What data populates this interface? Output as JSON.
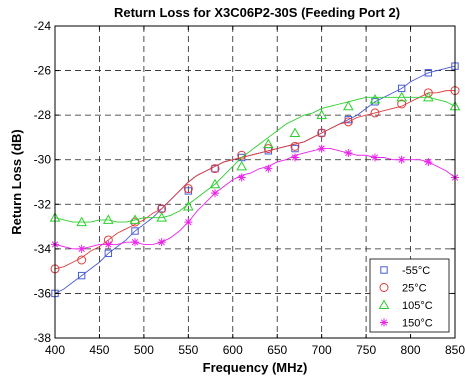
{
  "chart_data": {
    "type": "line",
    "title": "Return Loss for X3C06P2-30S (Feeding Port 2)",
    "xlabel": "Frequency (MHz)",
    "ylabel": "Return Loss (dB)",
    "xlim": [
      400,
      850
    ],
    "ylim": [
      -38,
      -24
    ],
    "xticks": [
      400,
      450,
      500,
      550,
      600,
      650,
      700,
      750,
      800,
      850
    ],
    "yticks": [
      -38,
      -36,
      -34,
      -32,
      -30,
      -28,
      -26,
      -24
    ],
    "grid": true,
    "legend_position": "bottom-right",
    "series": [
      {
        "name": "-55°C",
        "color": "#4a5dd6",
        "marker": "square",
        "x": [
          400,
          410,
          420,
          430,
          440,
          450,
          460,
          470,
          480,
          490,
          500,
          510,
          520,
          530,
          540,
          550,
          560,
          570,
          580,
          590,
          600,
          610,
          620,
          630,
          640,
          650,
          660,
          670,
          680,
          690,
          700,
          710,
          720,
          730,
          740,
          750,
          760,
          770,
          780,
          790,
          800,
          810,
          820,
          830,
          840,
          850
        ],
        "y": [
          -36.0,
          -35.8,
          -35.5,
          -35.2,
          -34.9,
          -34.6,
          -34.2,
          -33.9,
          -33.6,
          -33.2,
          -32.9,
          -32.6,
          -32.2,
          -31.8,
          -31.4,
          -31.0,
          -30.7,
          -30.5,
          -30.3,
          -30.1,
          -30.0,
          -29.9,
          -29.8,
          -29.7,
          -29.6,
          -29.5,
          -29.4,
          -29.3,
          -29.2,
          -29.0,
          -28.8,
          -28.6,
          -28.4,
          -28.2,
          -28.0,
          -27.7,
          -27.4,
          -27.2,
          -27.0,
          -26.8,
          -26.5,
          -26.3,
          -26.1,
          -26.0,
          -25.9,
          -25.8
        ],
        "marker_x": [
          400,
          430,
          460,
          490,
          520,
          550,
          580,
          610,
          640,
          670,
          700,
          730,
          760,
          790,
          820,
          850
        ],
        "marker_y": [
          -36.0,
          -35.2,
          -34.2,
          -33.2,
          -32.2,
          -31.4,
          -30.4,
          -29.9,
          -29.6,
          -29.5,
          -28.8,
          -28.2,
          -27.4,
          -26.8,
          -26.1,
          -25.8
        ]
      },
      {
        "name": "25°C",
        "color": "#e03c3c",
        "marker": "circle",
        "x": [
          400,
          410,
          420,
          430,
          440,
          450,
          460,
          470,
          480,
          490,
          500,
          510,
          520,
          530,
          540,
          550,
          560,
          570,
          580,
          590,
          600,
          610,
          620,
          630,
          640,
          650,
          660,
          670,
          680,
          690,
          700,
          710,
          720,
          730,
          740,
          750,
          760,
          770,
          780,
          790,
          800,
          810,
          820,
          830,
          840,
          850
        ],
        "y": [
          -34.9,
          -34.8,
          -34.6,
          -34.4,
          -34.1,
          -33.9,
          -33.6,
          -33.3,
          -33.1,
          -32.9,
          -32.7,
          -32.4,
          -32.2,
          -31.8,
          -31.4,
          -31.0,
          -30.7,
          -30.5,
          -30.3,
          -30.1,
          -30.0,
          -29.9,
          -29.8,
          -29.7,
          -29.6,
          -29.5,
          -29.4,
          -29.3,
          -29.2,
          -29.0,
          -28.8,
          -28.6,
          -28.4,
          -28.3,
          -28.1,
          -28.0,
          -27.9,
          -27.8,
          -27.7,
          -27.6,
          -27.4,
          -27.2,
          -27.0,
          -27.0,
          -26.9,
          -26.9
        ],
        "marker_x": [
          400,
          430,
          460,
          490,
          520,
          550,
          580,
          610,
          640,
          670,
          700,
          730,
          760,
          790,
          820,
          850
        ],
        "marker_y": [
          -34.9,
          -34.5,
          -33.6,
          -32.8,
          -32.2,
          -31.3,
          -30.4,
          -29.8,
          -29.5,
          -29.4,
          -28.8,
          -28.3,
          -27.9,
          -27.5,
          -27.0,
          -26.9
        ]
      },
      {
        "name": "105°C",
        "color": "#2bd12b",
        "marker": "triangle",
        "x": [
          400,
          410,
          420,
          430,
          440,
          450,
          460,
          470,
          480,
          490,
          500,
          510,
          520,
          530,
          540,
          550,
          560,
          570,
          580,
          590,
          600,
          610,
          620,
          630,
          640,
          650,
          660,
          670,
          680,
          690,
          700,
          710,
          720,
          730,
          740,
          750,
          760,
          770,
          780,
          790,
          800,
          810,
          820,
          830,
          840,
          850
        ],
        "y": [
          -32.6,
          -32.7,
          -32.8,
          -32.8,
          -32.8,
          -32.7,
          -32.7,
          -32.8,
          -32.8,
          -32.7,
          -32.6,
          -32.6,
          -32.6,
          -32.5,
          -32.3,
          -32.0,
          -31.7,
          -31.4,
          -31.1,
          -30.7,
          -30.3,
          -29.9,
          -29.6,
          -29.3,
          -29.0,
          -28.7,
          -28.4,
          -28.2,
          -28.0,
          -27.9,
          -27.7,
          -27.6,
          -27.5,
          -27.4,
          -27.3,
          -27.2,
          -27.2,
          -27.2,
          -27.2,
          -27.2,
          -27.2,
          -27.2,
          -27.2,
          -27.3,
          -27.4,
          -27.6
        ],
        "marker_x": [
          400,
          430,
          460,
          490,
          520,
          550,
          580,
          610,
          640,
          670,
          700,
          730,
          760,
          790,
          820,
          850
        ],
        "marker_y": [
          -32.6,
          -32.8,
          -32.7,
          -32.7,
          -32.6,
          -32.1,
          -31.1,
          -30.3,
          -29.3,
          -28.8,
          -28.0,
          -27.6,
          -27.3,
          -27.2,
          -27.2,
          -27.6
        ]
      },
      {
        "name": "150°C",
        "color": "#ee22ee",
        "marker": "star",
        "x": [
          400,
          410,
          420,
          430,
          440,
          450,
          460,
          470,
          480,
          490,
          500,
          510,
          520,
          530,
          540,
          550,
          560,
          570,
          580,
          590,
          600,
          610,
          620,
          630,
          640,
          650,
          660,
          670,
          680,
          690,
          700,
          710,
          720,
          730,
          740,
          750,
          760,
          770,
          780,
          790,
          800,
          810,
          820,
          830,
          840,
          850
        ],
        "y": [
          -33.8,
          -33.9,
          -34.0,
          -34.0,
          -33.9,
          -33.8,
          -33.8,
          -33.8,
          -33.7,
          -33.7,
          -33.8,
          -33.8,
          -33.7,
          -33.5,
          -33.2,
          -32.8,
          -32.3,
          -31.9,
          -31.5,
          -31.2,
          -30.9,
          -30.7,
          -30.6,
          -30.4,
          -30.3,
          -30.1,
          -30.0,
          -29.8,
          -29.7,
          -29.6,
          -29.5,
          -29.5,
          -29.6,
          -29.7,
          -29.8,
          -29.8,
          -29.9,
          -29.9,
          -30.0,
          -30.0,
          -30.0,
          -30.0,
          -30.1,
          -30.3,
          -30.5,
          -30.8
        ],
        "marker_x": [
          400,
          430,
          460,
          490,
          520,
          550,
          580,
          610,
          640,
          670,
          700,
          730,
          760,
          790,
          820,
          850
        ],
        "marker_y": [
          -33.8,
          -34.0,
          -33.8,
          -33.7,
          -33.7,
          -32.8,
          -31.5,
          -30.8,
          -30.4,
          -29.9,
          -29.5,
          -29.7,
          -29.9,
          -30.0,
          -30.1,
          -30.8
        ]
      }
    ]
  }
}
